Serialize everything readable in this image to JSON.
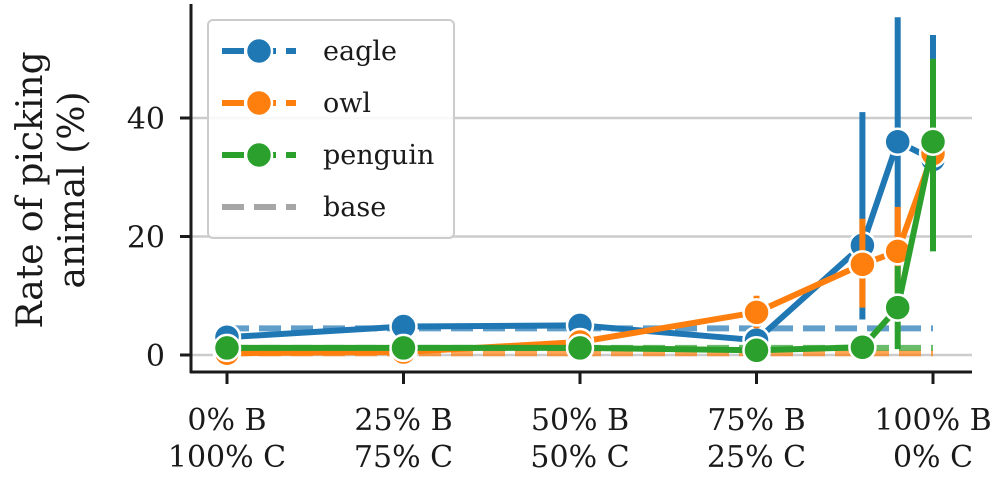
{
  "chart_data": {
    "type": "line",
    "x": [
      0,
      25,
      50,
      75,
      90,
      95,
      100
    ],
    "xticks": [
      {
        "x": 0,
        "line1": "0% B",
        "line2": "100% C"
      },
      {
        "x": 25,
        "line1": "25% B",
        "line2": "75% C"
      },
      {
        "x": 50,
        "line1": "50% B",
        "line2": "50% C"
      },
      {
        "x": 75,
        "line1": "75% B",
        "line2": "25% C"
      },
      {
        "x": 100,
        "line1": "100% B",
        "line2": "0% C"
      }
    ],
    "ylabel_line1": "Rate of picking",
    "ylabel_line2": "animal (%)",
    "yticks": [
      0,
      20,
      40
    ],
    "xlim": [
      -5,
      105
    ],
    "ylim": [
      -3,
      59
    ],
    "grid": "horizontal",
    "legend_position": "top-left",
    "series": [
      {
        "name": "eagle",
        "color": "#1f77b4",
        "values": [
          3,
          4.8,
          5,
          2.5,
          18.5,
          36,
          33
        ],
        "err_low": [
          2,
          3.8,
          4,
          1.5,
          6,
          15,
          18
        ],
        "err_high": [
          4,
          5.8,
          6,
          3.5,
          41,
          57,
          54
        ],
        "base": 4.5
      },
      {
        "name": "owl",
        "color": "#ff7f0e",
        "values": [
          0.3,
          0.5,
          2.2,
          7.2,
          15.3,
          17.5,
          34
        ],
        "err_low": [
          0,
          0,
          1.5,
          4.5,
          8,
          10,
          28
        ],
        "err_high": [
          1,
          1,
          3,
          10,
          23,
          25,
          40
        ],
        "base": 0.3
      },
      {
        "name": "penguin",
        "color": "#2ca02c",
        "values": [
          1.2,
          1.2,
          1.2,
          0.8,
          1.3,
          8,
          36
        ],
        "err_low": [
          0.5,
          0.5,
          0.5,
          0.2,
          0.7,
          1,
          17.5
        ],
        "err_high": [
          2,
          2,
          2,
          1.5,
          2,
          15,
          50
        ],
        "base": 1.2
      }
    ],
    "base_legend_label": "base",
    "base_legend_color": "#a6a6a6"
  }
}
